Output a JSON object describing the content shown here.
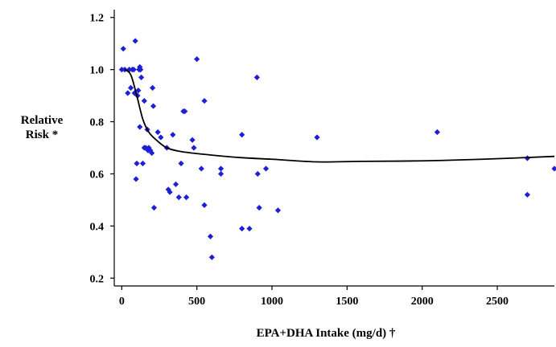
{
  "chart_data": {
    "type": "scatter",
    "xlabel": "EPA+DHA Intake (mg/d) †",
    "ylabel_lines": [
      "Relative",
      "Risk *"
    ],
    "xlim": [
      -50,
      2880
    ],
    "ylim": [
      0.17,
      1.23
    ],
    "x_ticks": [
      0,
      500,
      1000,
      1500,
      2000,
      2500
    ],
    "y_ticks": [
      "0.2",
      "0.4",
      "0.6",
      "0.8",
      "1.0",
      "1.2"
    ],
    "colors": {
      "points": "#1f1fd6",
      "trend": "#000000"
    },
    "points": [
      [
        0,
        1.0
      ],
      [
        10,
        1.08
      ],
      [
        20,
        1.0
      ],
      [
        40,
        0.91
      ],
      [
        50,
        1.0
      ],
      [
        60,
        0.93
      ],
      [
        70,
        1.0
      ],
      [
        80,
        1.0
      ],
      [
        85,
        0.91
      ],
      [
        90,
        1.11
      ],
      [
        95,
        0.58
      ],
      [
        100,
        0.64
      ],
      [
        105,
        0.9
      ],
      [
        110,
        0.92
      ],
      [
        115,
        1.0
      ],
      [
        120,
        1.01
      ],
      [
        125,
        1.0
      ],
      [
        130,
        0.97
      ],
      [
        120,
        0.78
      ],
      [
        140,
        0.64
      ],
      [
        150,
        0.7
      ],
      [
        150,
        0.88
      ],
      [
        160,
        0.7
      ],
      [
        170,
        0.77
      ],
      [
        175,
        0.69
      ],
      [
        180,
        0.7
      ],
      [
        190,
        0.69
      ],
      [
        200,
        0.68
      ],
      [
        205,
        0.93
      ],
      [
        210,
        0.86
      ],
      [
        215,
        0.47
      ],
      [
        240,
        0.76
      ],
      [
        260,
        0.74
      ],
      [
        300,
        0.7
      ],
      [
        310,
        0.54
      ],
      [
        320,
        0.53
      ],
      [
        340,
        0.75
      ],
      [
        360,
        0.56
      ],
      [
        380,
        0.51
      ],
      [
        395,
        0.64
      ],
      [
        410,
        0.84
      ],
      [
        420,
        0.84
      ],
      [
        430,
        0.51
      ],
      [
        470,
        0.73
      ],
      [
        480,
        0.7
      ],
      [
        500,
        1.04
      ],
      [
        530,
        0.62
      ],
      [
        550,
        0.88
      ],
      [
        550,
        0.48
      ],
      [
        590,
        0.36
      ],
      [
        600,
        0.28
      ],
      [
        660,
        0.62
      ],
      [
        660,
        0.6
      ],
      [
        800,
        0.75
      ],
      [
        800,
        0.39
      ],
      [
        850,
        0.39
      ],
      [
        900,
        0.97
      ],
      [
        905,
        0.6
      ],
      [
        915,
        0.47
      ],
      [
        960,
        0.62
      ],
      [
        1040,
        0.46
      ],
      [
        1300,
        0.74
      ],
      [
        2100,
        0.76
      ],
      [
        2700,
        0.66
      ],
      [
        2700,
        0.52
      ],
      [
        2880,
        0.62
      ]
    ],
    "trend": [
      [
        20,
        1.0
      ],
      [
        60,
        0.98
      ],
      [
        100,
        0.9
      ],
      [
        140,
        0.81
      ],
      [
        180,
        0.76
      ],
      [
        230,
        0.73
      ],
      [
        300,
        0.7
      ],
      [
        400,
        0.685
      ],
      [
        600,
        0.672
      ],
      [
        800,
        0.662
      ],
      [
        1000,
        0.656
      ],
      [
        1300,
        0.646
      ],
      [
        1600,
        0.648
      ],
      [
        2000,
        0.65
      ],
      [
        2400,
        0.656
      ],
      [
        2880,
        0.667
      ]
    ]
  }
}
